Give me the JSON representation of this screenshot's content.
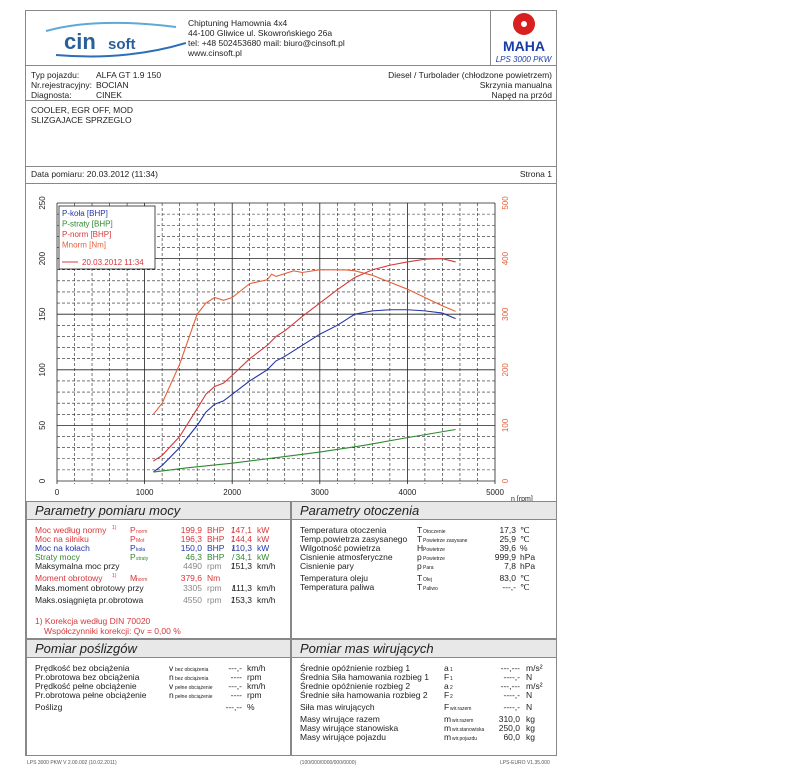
{
  "header": {
    "logo_text": "cinsoft",
    "company_lines": [
      "Chiptuning  Hamownia 4x4",
      "44-100 Gliwice ul. Skowrońskiego 26a",
      "tel: +48 502453680  mail: biuro@cinsoft.pl",
      "www.cinsoft.pl"
    ],
    "maha_logo": "MAHA",
    "maha_model": "LPS 3000 PKW"
  },
  "vehicle": {
    "labels": [
      "Typ pojazdu:",
      "Nr.rejestracyjny:",
      "Diagnosta:"
    ],
    "values": [
      "ALFA GT 1.9 150",
      "BOCIAN",
      "CINEK"
    ],
    "right": [
      "Diesel / Turbolader (chłodzone powietrzem)",
      "Skrzynia manualna",
      "Napęd na przód"
    ]
  },
  "notes": [
    "COOLER, EGR OFF, MOD",
    "SLIZGAJACE SPRZEGLO"
  ],
  "date": {
    "label": "Data pomiaru: 20.03.2012 (11:34)",
    "page": "Strona 1"
  },
  "chart_data": {
    "type": "line",
    "xlabel": "n [rpm]",
    "xlim": [
      0,
      5000
    ],
    "ylim_left": [
      0,
      250
    ],
    "ylim_right": [
      0,
      500
    ],
    "x_ticks": [
      0,
      1000,
      2000,
      3000,
      4000,
      5000
    ],
    "y_ticks_left": [
      0,
      50,
      100,
      150,
      200,
      250
    ],
    "y_ticks_right": [
      0,
      100,
      200,
      300,
      400,
      500
    ],
    "grid": true,
    "legend_placement": "top-left",
    "legend": [
      "P-koła [BHP]",
      "P-straty [BHP]",
      "P-norm [BHP]",
      "Mnorm [Nm]",
      "20.03.2012 11:34"
    ],
    "series": [
      {
        "name": "P-koła [BHP]",
        "color": "#2435a8",
        "axis": "left",
        "x": [
          1100,
          1200,
          1400,
          1600,
          1700,
          1800,
          1900,
          2000,
          2200,
          2400,
          2500,
          2600,
          2800,
          3000,
          3200,
          3400,
          3600,
          3800,
          4000,
          4200,
          4400,
          4550
        ],
        "values": [
          8,
          14,
          30,
          50,
          62,
          69,
          72,
          78,
          90,
          100,
          108,
          112,
          122,
          132,
          140,
          150,
          153,
          154,
          154,
          153,
          151,
          146
        ]
      },
      {
        "name": "P-straty [BHP]",
        "color": "#2f8a2f",
        "axis": "left",
        "x": [
          1100,
          1500,
          2000,
          2500,
          3000,
          3500,
          4000,
          4550
        ],
        "values": [
          8,
          12,
          16,
          21,
          26,
          32,
          39,
          46.3
        ]
      },
      {
        "name": "P-norm [BHP]",
        "color": "#d8383a",
        "axis": "left",
        "x": [
          1100,
          1200,
          1400,
          1600,
          1700,
          1800,
          1900,
          2000,
          2200,
          2400,
          2500,
          2600,
          2800,
          3000,
          3200,
          3400,
          3600,
          3800,
          4000,
          4200,
          4400,
          4550
        ],
        "values": [
          18,
          23,
          40,
          65,
          78,
          85,
          88,
          95,
          110,
          122,
          130,
          135,
          148,
          160,
          172,
          183,
          190,
          194,
          197,
          199.5,
          199.9,
          197
        ]
      },
      {
        "name": "Mnorm [Nm]",
        "color": "#e8603a",
        "axis": "right",
        "x": [
          1100,
          1200,
          1400,
          1600,
          1700,
          1800,
          1900,
          2000,
          2200,
          2400,
          2450,
          2500,
          2700,
          2800,
          3000,
          3300,
          3400,
          3600,
          4000,
          4400,
          4550
        ],
        "values": [
          120,
          140,
          210,
          300,
          320,
          330,
          325,
          330,
          355,
          362,
          372,
          368,
          378,
          375,
          380,
          379.6,
          378,
          370,
          345,
          315,
          305
        ]
      }
    ]
  },
  "power": {
    "title": "Parametry pomiaru mocy",
    "rows": [
      {
        "label": "Moc według normy",
        "sym": "P",
        "sub": "norm",
        "val": "199,9",
        "unit": "BHP",
        "sep": "/",
        "val2": "147,1",
        "unit2": "kW",
        "cls": "red",
        "foot": "1)"
      },
      {
        "label": "Moc na silniku",
        "sym": "P",
        "sub": "Mot",
        "val": "196,3",
        "unit": "BHP",
        "sep": "/",
        "val2": "144,4",
        "unit2": "kW",
        "cls": "red"
      },
      {
        "label": "Moc na kołach",
        "sym": "P",
        "sub": "koła",
        "val": "150,0",
        "unit": "BHP",
        "sep": "/",
        "val2": "110,3",
        "unit2": "kW",
        "cls": "blue"
      },
      {
        "label": "Straty mocy",
        "sym": "P",
        "sub": "straty",
        "val": "46,3",
        "unit": "BHP",
        "sep": "/",
        "val2": "34,1",
        "unit2": "kW",
        "cls": "green"
      },
      {
        "label": "Maksymalna moc przy",
        "sym": "",
        "sub": "",
        "val": "4490",
        "unit": "rpm",
        "sep": "/",
        "val2": "151,3",
        "unit2": "km/h",
        "cls": "plain"
      },
      {
        "label": "Moment obrotowy",
        "sym": "M",
        "sub": "norm",
        "val": "379,6",
        "unit": "Nm",
        "sep": "",
        "val2": "",
        "unit2": "",
        "cls": "red",
        "foot": "1)"
      },
      {
        "label": "Maks.moment obrotowy przy",
        "sym": "",
        "sub": "",
        "val": "3305",
        "unit": "rpm",
        "sep": "/",
        "val2": "111,3",
        "unit2": "km/h",
        "cls": "plain"
      },
      {
        "label": "Maks.osiągnięta pr.obrotowa",
        "sym": "",
        "sub": "",
        "val": "4550",
        "unit": "rpm",
        "sep": "/",
        "val2": "153,3",
        "unit2": "km/h",
        "cls": "plain"
      }
    ],
    "note1": "1) Korekcja według DIN 70020",
    "note2": "Współczynniki korekcji: Qv =   0,00 %"
  },
  "ambient": {
    "title": "Parametry otoczenia",
    "rows": [
      {
        "label": "Temperatura otoczenia",
        "sym": "T",
        "sub": "Otoczenie",
        "val": "17,3",
        "unit": "℃"
      },
      {
        "label": "Temp.powietrza zasysanego",
        "sym": "T",
        "sub": "Powietrze zasysane",
        "val": "25,9",
        "unit": "℃"
      },
      {
        "label": "Wilgotność powietrza",
        "sym": "H",
        "sub": "Powietrze",
        "val": "39,6",
        "unit": "%"
      },
      {
        "label": "Cisnienie atmosferyczne",
        "sym": "p",
        "sub": "Powietrze",
        "val": "999,9",
        "unit": "hPa"
      },
      {
        "label": "Cisnienie pary",
        "sym": "p",
        "sub": "Para",
        "val": "7,8",
        "unit": "hPa"
      },
      {
        "label": "Temperatura oleju",
        "sym": "T",
        "sub": "Olej",
        "val": "83,0",
        "unit": "℃"
      },
      {
        "label": "Temperatura paliwa",
        "sym": "T",
        "sub": "Paliwo",
        "val": "---,-",
        "unit": "℃"
      }
    ]
  },
  "slip": {
    "title": "Pomiar poślizgów",
    "rows": [
      {
        "label": "Prędkość bez obciążenia",
        "sym": "v",
        "sub": "bez obciążenia",
        "val": "---,-",
        "unit": "km/h"
      },
      {
        "label": "Pr.obrotowa bez obciążenia",
        "sym": "n",
        "sub": "bez obciążenia",
        "val": "----",
        "unit": "rpm"
      },
      {
        "label": "Prędkość pełne obciążenie",
        "sym": "v",
        "sub": "pełne obciążenie",
        "val": "---,-",
        "unit": "km/h"
      },
      {
        "label": "Pr.obrotowa pełne obciążenie",
        "sym": "n",
        "sub": "pełne obciążenie",
        "val": "----",
        "unit": "rpm"
      },
      {
        "label": "Poślizg",
        "sym": "",
        "sub": "",
        "val": "---,--",
        "unit": "%"
      }
    ]
  },
  "mass": {
    "title": "Pomiar mas wirujących",
    "rows": [
      {
        "label": "Średnie opóźnienie rozbieg 1",
        "sym": "a",
        "sub": "1",
        "val": "---,---",
        "unit": "m/s²"
      },
      {
        "label": "Średnia Siła hamowania rozbieg 1",
        "sym": "F",
        "sub": "1",
        "val": "----,-",
        "unit": "N"
      },
      {
        "label": "Średnie opóźnienie rozbieg 2",
        "sym": "a",
        "sub": "2",
        "val": "---,---",
        "unit": "m/s²"
      },
      {
        "label": "Średnie siła hamowania rozbieg 2",
        "sym": "F",
        "sub": "2",
        "val": "----,-",
        "unit": "N"
      },
      {
        "label": "Siła mas wirujących",
        "sym": "F",
        "sub": "wir.razem",
        "val": "----,-",
        "unit": "N"
      },
      {
        "label": "Masy wirujące razem",
        "sym": "m",
        "sub": "wir.razem",
        "val": "310,0",
        "unit": "kg"
      },
      {
        "label": "Masy wirujące stanowiska",
        "sym": "m",
        "sub": "wir.stanowiska",
        "val": "250,0",
        "unit": "kg"
      },
      {
        "label": "Masy wirujące pojazdu",
        "sym": "m",
        "sub": "wir.pojazdu",
        "val": "60,0",
        "unit": "kg"
      }
    ]
  },
  "footer": {
    "left": "LPS 3000 PKW V 2.00.002 (10.02.2011)",
    "center": "(100/000/0000/000/0000)",
    "right": "LPS-EURO V1.35.000"
  }
}
